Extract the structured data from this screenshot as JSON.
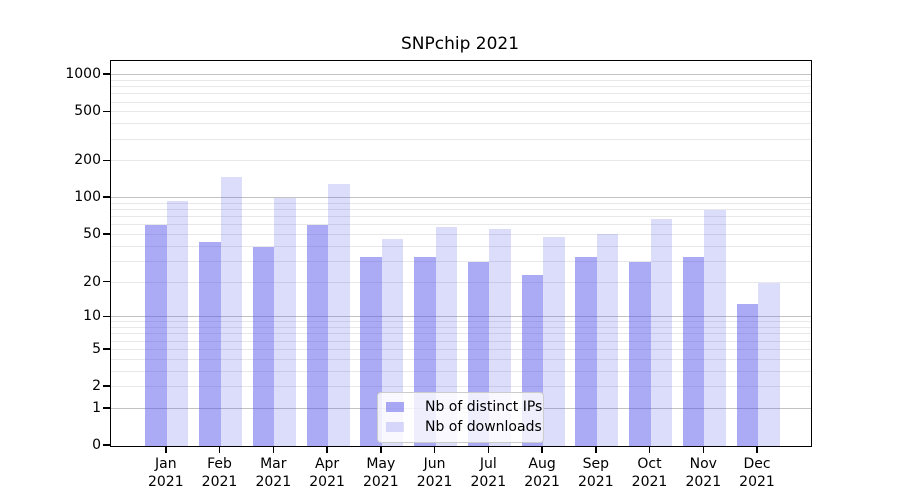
{
  "title": "SNPchip 2021",
  "colors": {
    "bar_distinct_ips": "rgba(80,80,235,0.48)",
    "bar_downloads": "rgba(80,80,235,0.20)",
    "grid_major": "#c2c2c2",
    "grid_minor": "#e8e8e8",
    "spine": "#000000",
    "legend_border": "#cccccc",
    "legend_background": "rgba(255,255,255,0.8)"
  },
  "legend": {
    "entries": [
      {
        "label": "Nb of distinct IPs",
        "color": "rgba(80,80,235,0.48)"
      },
      {
        "label": "Nb of downloads",
        "color": "rgba(80,80,235,0.20)"
      }
    ],
    "position": "lower-center"
  },
  "chart_data": {
    "type": "bar",
    "title": "SNPchip 2021",
    "categories": [
      "Jan 2021",
      "Feb 2021",
      "Mar 2021",
      "Apr 2021",
      "May 2021",
      "Jun 2021",
      "Jul 2021",
      "Aug 2021",
      "Sep 2021",
      "Oct 2021",
      "Nov 2021",
      "Dec 2021"
    ],
    "series": [
      {
        "name": "Nb of distinct IPs",
        "values": [
          60,
          44,
          40,
          60,
          33,
          33,
          30,
          23,
          33,
          30,
          33,
          13
        ]
      },
      {
        "name": "Nb of downloads",
        "values": [
          95,
          150,
          100,
          130,
          46,
          58,
          56,
          48,
          51,
          68,
          80,
          20
        ]
      }
    ],
    "xlabel": "",
    "ylabel": "",
    "yscale": "log1p",
    "ylim": [
      0,
      1300
    ],
    "y_tick_values": [
      0,
      1,
      2,
      5,
      10,
      20,
      50,
      100,
      200,
      500,
      1000
    ],
    "grid": "horizontal",
    "grid_major_at": [
      1,
      10,
      100,
      1000
    ],
    "legend_position": "lower-center"
  }
}
